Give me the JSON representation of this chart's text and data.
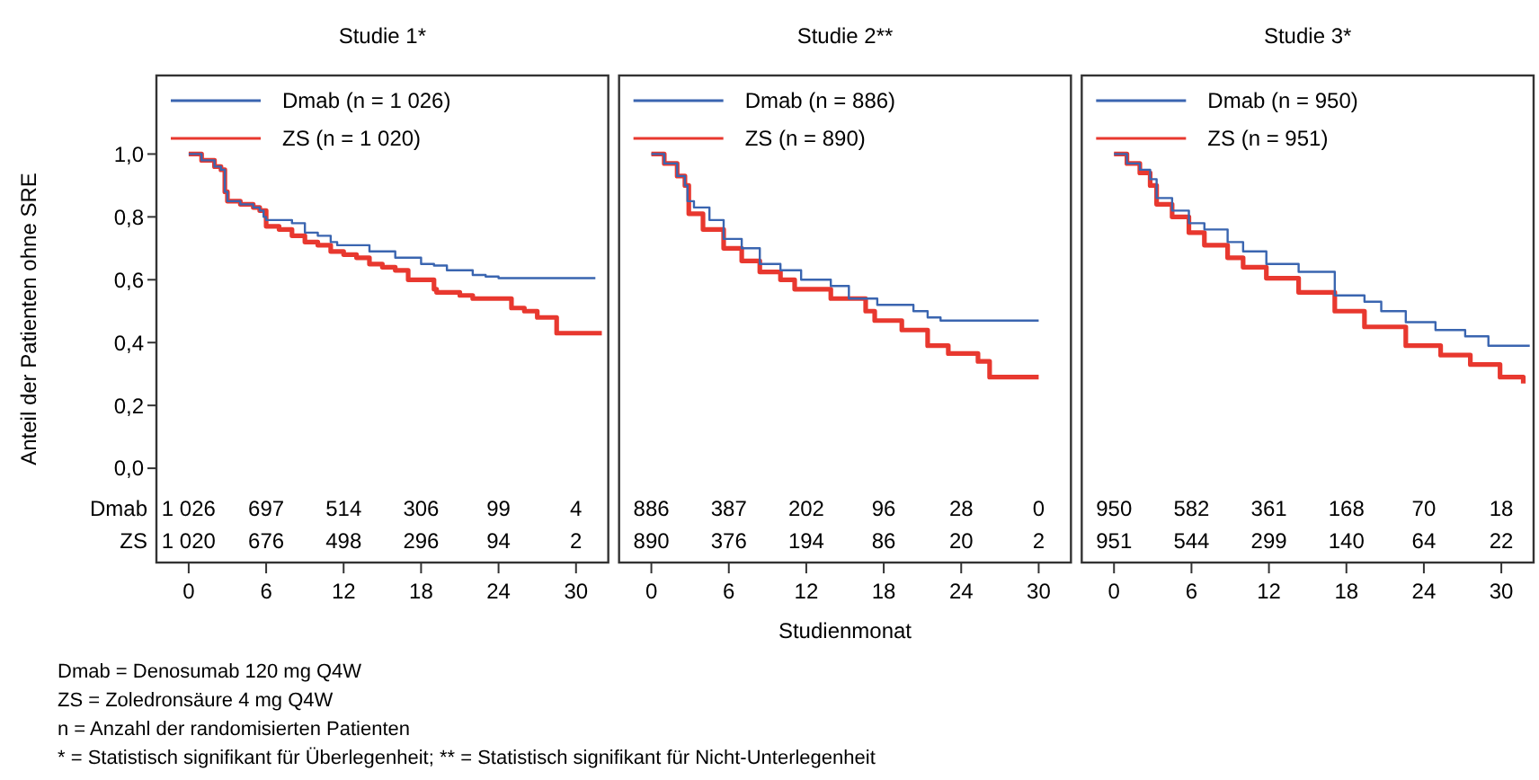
{
  "chart_data": [
    {
      "type": "step",
      "title": "Studie 1*",
      "ylabel": "Anteil der Patienten ohne SRE",
      "xlim": [
        -2.5,
        32.5
      ],
      "xticks": [
        0,
        6,
        12,
        18,
        24,
        30
      ],
      "ylim": [
        -0.3,
        1.25
      ],
      "yticks": [
        {
          "value": 0,
          "label": "0,0"
        },
        {
          "value": 0.2,
          "label": "0,2"
        },
        {
          "value": 0.4,
          "label": "0,4"
        },
        {
          "value": 0.6,
          "label": "0,6"
        },
        {
          "value": 0.8,
          "label": "0,8"
        },
        {
          "value": 1,
          "label": "1,0"
        }
      ],
      "grid": false,
      "legend": "top left",
      "marker": "none",
      "series": [
        {
          "name": "Dmab (n = 1 026)",
          "color": "#3a65b0",
          "x": [
            0,
            1,
            2,
            2.5,
            2.8,
            3,
            4,
            5,
            5.5,
            5.8,
            6,
            8,
            9,
            10,
            11,
            11.5,
            14,
            16,
            18,
            19,
            20,
            22,
            23,
            24,
            31.5
          ],
          "values": [
            1,
            0.98,
            0.96,
            0.95,
            0.88,
            0.85,
            0.84,
            0.83,
            0.82,
            0.8,
            0.79,
            0.78,
            0.75,
            0.74,
            0.72,
            0.71,
            0.69,
            0.67,
            0.65,
            0.645,
            0.63,
            0.615,
            0.61,
            0.605,
            0.605
          ]
        },
        {
          "name": "ZS (n = 1 020)",
          "color": "#e8382f",
          "x": [
            0,
            1,
            2,
            2.5,
            2.8,
            3,
            4,
            5,
            5.5,
            6,
            7,
            8,
            9,
            10,
            11,
            12,
            13,
            14,
            15,
            16,
            17,
            18,
            19,
            19.2,
            21,
            22,
            24,
            25,
            26,
            27,
            28.5,
            32
          ],
          "values": [
            1,
            0.98,
            0.96,
            0.95,
            0.88,
            0.85,
            0.84,
            0.83,
            0.82,
            0.77,
            0.76,
            0.74,
            0.72,
            0.71,
            0.69,
            0.68,
            0.67,
            0.65,
            0.64,
            0.63,
            0.6,
            0.6,
            0.57,
            0.56,
            0.55,
            0.54,
            0.54,
            0.51,
            0.5,
            0.48,
            0.43,
            0.43
          ]
        }
      ],
      "annotations": [
        "Dmab",
        "1 026",
        "697",
        "514",
        "306",
        "99",
        "4",
        "ZS",
        "1 020",
        "676",
        "498",
        "296",
        "94",
        "2",
        "Dmab = Denosumab 120 mg Q4W",
        "ZS = Zoledronsäure 4 mg Q4W",
        "n = Anzahl der randomisierten Patienten",
        "* = Statistisch signifikant für Überlegenheit; ** = Statistisch signifikant für Nicht-Unterlegenheit"
      ]
    },
    {
      "type": "step",
      "title": "Studie 2**",
      "xlabel": "Studienmonat",
      "xlim": [
        -2.5,
        32.5
      ],
      "xticks": [
        0,
        6,
        12,
        18,
        24,
        30
      ],
      "ylim": [
        -0.3,
        1.25
      ],
      "tick_labels": "x",
      "grid": false,
      "legend": "top left",
      "marker": "none",
      "series": [
        {
          "name": "Dmab (n = 886)",
          "color": "#3a65b0",
          "x": [
            0,
            1,
            2,
            2.6,
            2.8,
            3.3,
            4.5,
            5.6,
            7,
            8.4,
            10,
            11.6,
            13.9,
            15.3,
            17.5,
            20.3,
            21.4,
            22.4,
            30
          ],
          "values": [
            1,
            0.97,
            0.93,
            0.9,
            0.85,
            0.83,
            0.79,
            0.73,
            0.7,
            0.65,
            0.63,
            0.6,
            0.58,
            0.54,
            0.52,
            0.5,
            0.48,
            0.47,
            0.47
          ]
        },
        {
          "name": "ZS (n = 890)",
          "color": "#e8382f",
          "x": [
            0,
            1,
            2,
            2.6,
            2.9,
            4,
            5.6,
            7,
            8.4,
            10,
            11.1,
            13.9,
            16.6,
            17.3,
            19.4,
            21.4,
            23,
            25.3,
            26.2,
            30
          ],
          "values": [
            1,
            0.97,
            0.93,
            0.9,
            0.81,
            0.76,
            0.7,
            0.66,
            0.625,
            0.6,
            0.57,
            0.54,
            0.5,
            0.47,
            0.44,
            0.39,
            0.365,
            0.34,
            0.29,
            0.29
          ]
        }
      ],
      "annotations": [
        "886",
        "387",
        "202",
        "96",
        "28",
        "0",
        "890",
        "376",
        "194",
        "86",
        "20",
        "2"
      ]
    },
    {
      "type": "step",
      "title": "Studie 3*",
      "xlim": [
        -2.5,
        32.5
      ],
      "xticks": [
        0,
        6,
        12,
        18,
        24,
        30
      ],
      "ylim": [
        -0.3,
        1.25
      ],
      "tick_labels": "x",
      "grid": false,
      "legend": "top left",
      "marker": "none",
      "series": [
        {
          "name": "Dmab (n = 950)",
          "color": "#3a65b0",
          "x": [
            0,
            1,
            2,
            2.8,
            3.3,
            4.5,
            5.8,
            7,
            8.8,
            10,
            11.8,
            14.3,
            17.1,
            19.4,
            20.7,
            22.6,
            24.9,
            27.2,
            29,
            32.2
          ],
          "values": [
            1,
            0.97,
            0.95,
            0.92,
            0.86,
            0.82,
            0.78,
            0.76,
            0.72,
            0.69,
            0.65,
            0.625,
            0.55,
            0.53,
            0.5,
            0.465,
            0.44,
            0.42,
            0.39,
            0.39
          ]
        },
        {
          "name": "ZS (n = 951)",
          "color": "#e8382f",
          "x": [
            0,
            1,
            2,
            2.8,
            3.3,
            4.5,
            5.8,
            7,
            8.8,
            10,
            11.8,
            14.3,
            17.1,
            19.4,
            22.6,
            25.3,
            27.6,
            29.9,
            31.7
          ],
          "values": [
            1,
            0.97,
            0.94,
            0.9,
            0.84,
            0.8,
            0.75,
            0.71,
            0.67,
            0.64,
            0.605,
            0.56,
            0.5,
            0.45,
            0.39,
            0.36,
            0.33,
            0.29,
            0.27
          ]
        }
      ],
      "annotations": [
        "950",
        "582",
        "361",
        "168",
        "70",
        "18",
        "951",
        "544",
        "299",
        "140",
        "64",
        "22"
      ]
    }
  ]
}
